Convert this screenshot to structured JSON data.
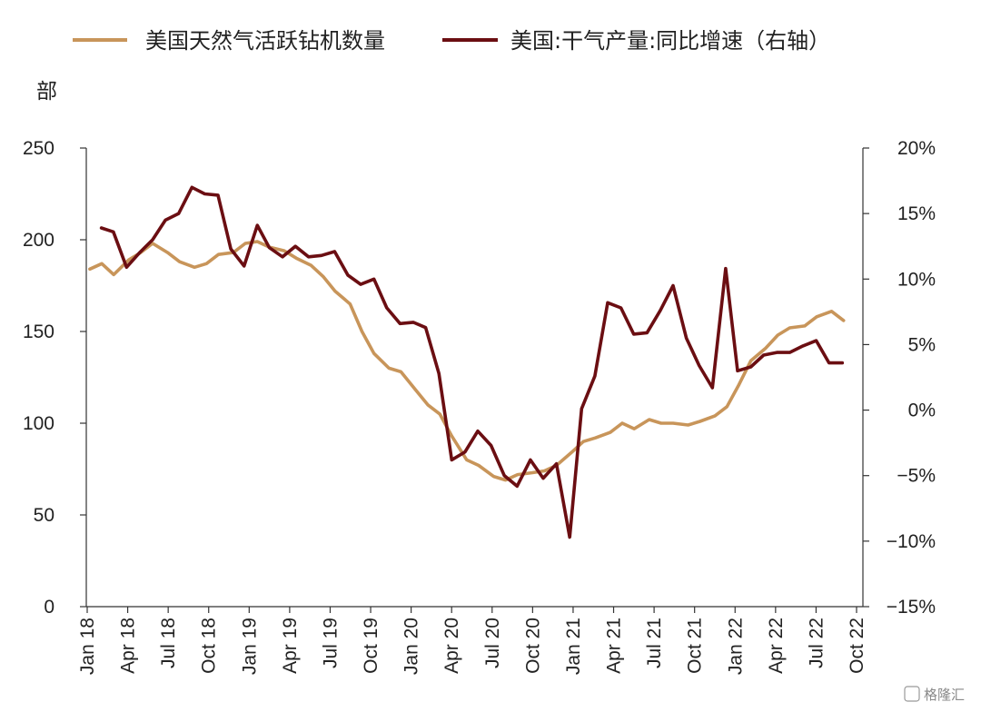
{
  "legend": {
    "series1": "美国天然气活跃钻机数量",
    "series2": "美国:干气产量:同比增速（右轴）"
  },
  "unit_label": "部",
  "watermark": "格隆汇",
  "chart_data": {
    "type": "line",
    "x_tick_labels": [
      "Jan 18",
      "Apr 18",
      "Jul 18",
      "Oct 18",
      "Jan 19",
      "Apr 19",
      "Jul 19",
      "Oct 19",
      "Jan 20",
      "Apr 20",
      "Jul 20",
      "Oct 20",
      "Jan 21",
      "Apr 21",
      "Jul 21",
      "Oct 21",
      "Jan 22",
      "Apr 22",
      "Jul 22",
      "Oct 22"
    ],
    "left_axis": {
      "ylim": [
        0,
        250
      ],
      "ticks": [
        "0",
        "50",
        "100",
        "150",
        "200",
        "250"
      ]
    },
    "right_axis": {
      "ylim": [
        -15,
        20
      ],
      "ticks": [
        "−15%",
        "−10%",
        "−5%",
        "0%",
        "5%",
        "10%",
        "15%",
        "20%"
      ]
    },
    "colors": {
      "series1": "#c8955a",
      "series2": "#6b0e12"
    },
    "series": [
      {
        "name": "美国天然气活跃钻机数量",
        "axis": "left",
        "x": [
          "2018-01-05",
          "2018-02-02",
          "2018-03-02",
          "2018-04-06",
          "2018-05-04",
          "2018-06-01",
          "2018-07-06",
          "2018-08-03",
          "2018-09-07",
          "2018-10-05",
          "2018-11-02",
          "2018-12-07",
          "2019-01-04",
          "2019-02-01",
          "2019-03-01",
          "2019-04-05",
          "2019-05-03",
          "2019-06-07",
          "2019-07-05",
          "2019-08-02",
          "2019-09-06",
          "2019-10-04",
          "2019-11-01",
          "2019-12-06",
          "2020-01-03",
          "2020-02-07",
          "2020-03-06",
          "2020-04-03",
          "2020-05-01",
          "2020-06-05",
          "2020-07-03",
          "2020-08-07",
          "2020-09-04",
          "2020-10-02",
          "2020-11-06",
          "2020-12-04",
          "2021-01-01",
          "2021-02-05",
          "2021-03-05",
          "2021-04-02",
          "2021-05-07",
          "2021-06-04",
          "2021-07-02",
          "2021-08-06",
          "2021-09-03",
          "2021-10-01",
          "2021-11-05",
          "2021-12-03",
          "2022-01-07",
          "2022-02-04",
          "2022-03-04",
          "2022-04-01",
          "2022-05-06",
          "2022-06-03",
          "2022-07-01",
          "2022-08-05",
          "2022-09-02",
          "2022-10-07",
          "2022-11-04"
        ],
        "values": [
          184,
          187,
          181,
          189,
          193,
          198,
          193,
          188,
          185,
          187,
          192,
          193,
          198,
          199,
          196,
          194,
          190,
          186,
          180,
          172,
          165,
          150,
          138,
          130,
          128,
          118,
          110,
          105,
          93,
          80,
          77,
          71,
          69,
          72,
          73,
          74,
          77,
          84,
          90,
          92,
          95,
          100,
          97,
          102,
          100,
          100,
          99,
          101,
          104,
          109,
          121,
          134,
          141,
          148,
          152,
          153,
          158,
          161,
          156
        ]
      },
      {
        "name": "美国:干气产量:同比增速（右轴）",
        "axis": "right",
        "x": [
          "2018-02",
          "2018-03",
          "2018-04",
          "2018-05",
          "2018-06",
          "2018-07",
          "2018-08",
          "2018-09",
          "2018-10",
          "2018-11",
          "2018-12",
          "2019-01",
          "2019-02",
          "2019-03",
          "2019-04",
          "2019-05",
          "2019-06",
          "2019-07",
          "2019-08",
          "2019-09",
          "2019-10",
          "2019-11",
          "2019-12",
          "2020-01",
          "2020-02",
          "2020-03",
          "2020-04",
          "2020-05",
          "2020-06",
          "2020-07",
          "2020-08",
          "2020-09",
          "2020-10",
          "2020-11",
          "2020-12",
          "2021-01",
          "2021-02",
          "2021-03",
          "2021-04",
          "2021-05",
          "2021-06",
          "2021-07",
          "2021-08",
          "2021-09",
          "2021-10",
          "2021-11",
          "2021-12",
          "2022-01",
          "2022-02",
          "2022-03",
          "2022-04",
          "2022-05",
          "2022-06",
          "2022-07",
          "2022-08",
          "2022-09",
          "2022-10",
          "2022-11"
        ],
        "values": [
          13.9,
          13.6,
          10.9,
          12.0,
          13.0,
          14.5,
          15.0,
          17.0,
          16.5,
          16.4,
          12.3,
          11.0,
          14.1,
          12.4,
          11.7,
          12.5,
          11.7,
          11.8,
          12.1,
          10.3,
          9.6,
          10.0,
          7.8,
          6.6,
          6.7,
          6.3,
          2.8,
          -3.8,
          -3.2,
          -1.6,
          -2.7,
          -5.0,
          -5.8,
          -3.8,
          -5.2,
          -4.1,
          -9.7,
          0.1,
          2.6,
          8.2,
          7.8,
          5.8,
          5.9,
          7.6,
          9.5,
          5.5,
          3.4,
          1.7,
          10.8,
          3.0,
          3.3,
          4.2,
          4.4,
          4.4,
          4.9,
          5.3,
          3.6,
          3.6
        ]
      }
    ],
    "grid": false,
    "legend_position": "top"
  }
}
